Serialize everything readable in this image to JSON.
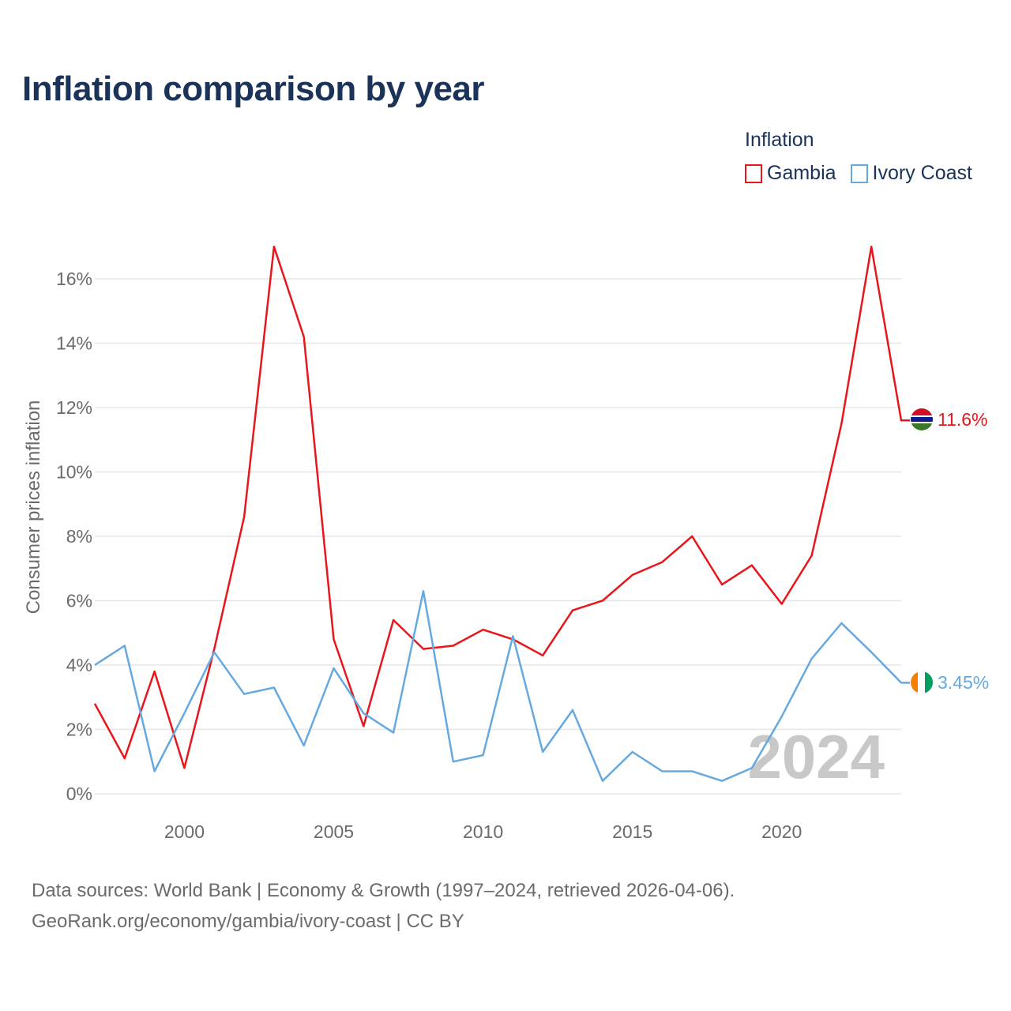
{
  "title": "Inflation comparison by year",
  "legend": {
    "title": "Inflation",
    "items": [
      "Gambia",
      "Ivory Coast"
    ]
  },
  "footer": {
    "line1": "Data sources: World Bank | Economy & Growth (1997–2024, retrieved 2026-04-06).",
    "line2": "GeoRank.org/economy/gambia/ivory-coast | CC BY"
  },
  "colors": {
    "gambia": "#e8161b",
    "ivory_coast": "#66a8e0",
    "grid": "#e6e6e6",
    "axis_text": "#6b6b6b",
    "year_watermark": "#c8c8c8"
  },
  "chart_data": {
    "type": "line",
    "title": "Inflation comparison by year",
    "ylabel": "Consumer prices inflation",
    "xlabel": "",
    "xlim": [
      1997,
      2024
    ],
    "ylim": [
      -0.5,
      17
    ],
    "y_ticks": [
      0,
      2,
      4,
      6,
      8,
      10,
      12,
      14,
      16
    ],
    "y_tick_labels": [
      "0%",
      "2%",
      "4%",
      "6%",
      "8%",
      "10%",
      "12%",
      "14%",
      "16%"
    ],
    "x_ticks": [
      2000,
      2005,
      2010,
      2015,
      2020
    ],
    "x_tick_labels": [
      "2000",
      "2005",
      "2010",
      "2015",
      "2020"
    ],
    "year_label": "2024",
    "x": [
      1997,
      1998,
      1999,
      2000,
      2001,
      2002,
      2003,
      2004,
      2005,
      2006,
      2007,
      2008,
      2009,
      2010,
      2011,
      2012,
      2013,
      2014,
      2015,
      2016,
      2017,
      2018,
      2019,
      2020,
      2021,
      2022,
      2023,
      2024
    ],
    "series": [
      {
        "name": "Gambia",
        "color": "#e8161b",
        "end_label": "11.6%",
        "values": [
          2.8,
          1.1,
          3.8,
          0.8,
          4.5,
          8.6,
          17.0,
          14.2,
          4.8,
          2.1,
          5.4,
          4.5,
          4.6,
          5.1,
          4.8,
          4.3,
          5.7,
          6.0,
          6.8,
          7.2,
          8.0,
          6.5,
          7.1,
          5.9,
          7.4,
          11.5,
          17.0,
          11.6
        ]
      },
      {
        "name": "Ivory Coast",
        "color": "#66a8e0",
        "end_label": "3.45%",
        "values": [
          4.0,
          4.6,
          0.7,
          2.5,
          4.4,
          3.1,
          3.3,
          1.5,
          3.9,
          2.5,
          1.9,
          6.3,
          1.0,
          1.2,
          4.9,
          1.3,
          2.6,
          0.4,
          1.3,
          0.7,
          0.7,
          0.4,
          0.8,
          2.4,
          4.2,
          5.3,
          4.4,
          3.45
        ]
      }
    ],
    "legend_position": "top-right",
    "grid": true
  }
}
